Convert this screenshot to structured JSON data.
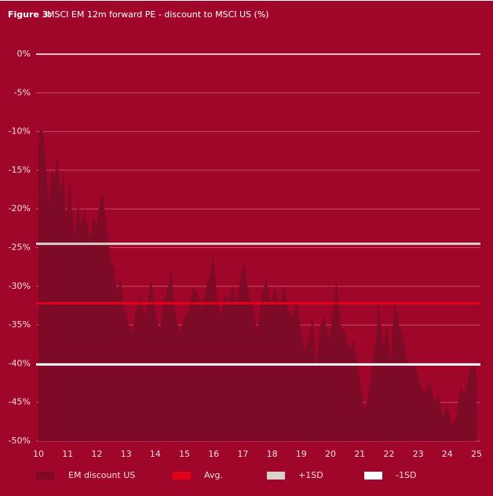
{
  "chart_data": {
    "type": "area",
    "title_label": "Figure 3:",
    "title": "MSCI EM 12m forward PE - discount to MSCI US (%)",
    "series": [
      {
        "name": "EM discount US",
        "color": "#7d0a26",
        "x": [
          10.0,
          10.05,
          10.15,
          10.25,
          10.35,
          10.45,
          10.55,
          10.65,
          10.75,
          10.85,
          10.95,
          11.05,
          11.15,
          11.25,
          11.35,
          11.45,
          11.6,
          11.75,
          11.9,
          12.0,
          12.1,
          12.2,
          12.3,
          12.45,
          12.6,
          12.7,
          12.8,
          12.95,
          13.1,
          13.2,
          13.35,
          13.5,
          13.6,
          13.7,
          13.85,
          14.0,
          14.15,
          14.3,
          14.45,
          14.55,
          14.7,
          14.85,
          15.0,
          15.15,
          15.3,
          15.45,
          15.6,
          15.75,
          15.9,
          16.0,
          16.1,
          16.25,
          16.4,
          16.5,
          16.65,
          16.8,
          16.95,
          17.05,
          17.2,
          17.35,
          17.5,
          17.65,
          17.8,
          17.95,
          18.1,
          18.25,
          18.4,
          18.55,
          18.7,
          18.85,
          19.0,
          19.1,
          19.25,
          19.4,
          19.5,
          19.65,
          19.8,
          19.95,
          20.1,
          20.2,
          20.35,
          20.5,
          20.65,
          20.8,
          20.95,
          21.05,
          21.15,
          21.3,
          21.45,
          21.55,
          21.65,
          21.8,
          21.95,
          22.05,
          22.2,
          22.35,
          22.5,
          22.65,
          22.8,
          22.95,
          23.1,
          23.25,
          23.4,
          23.55,
          23.7,
          23.85,
          24.0,
          24.15,
          24.3,
          24.45,
          24.6,
          24.75,
          24.9,
          25.0
        ],
        "values": [
          -12,
          -9.5,
          -10,
          -14,
          -20,
          -15,
          -16,
          -13,
          -18,
          -15,
          -22,
          -16,
          -20,
          -24,
          -19,
          -22,
          -20,
          -24,
          -21,
          -22,
          -19,
          -18,
          -21,
          -26,
          -28,
          -31,
          -29,
          -33,
          -35,
          -36,
          -33,
          -31,
          -34,
          -33,
          -29,
          -33,
          -36,
          -32,
          -30,
          -28,
          -34,
          -36,
          -34,
          -33,
          -30,
          -31,
          -33,
          -30,
          -28,
          -26,
          -31,
          -34,
          -31,
          -32,
          -30,
          -32,
          -28,
          -27,
          -31,
          -33,
          -36,
          -31,
          -29,
          -32,
          -30,
          -33,
          -30,
          -33,
          -34,
          -32,
          -36,
          -38,
          -37,
          -34,
          -41,
          -35,
          -34,
          -37,
          -33,
          -29,
          -35,
          -36,
          -38,
          -37,
          -41,
          -43,
          -46,
          -44,
          -40,
          -37,
          -32,
          -38,
          -35,
          -40,
          -32,
          -35,
          -37,
          -40,
          -40,
          -41,
          -43,
          -44,
          -42,
          -45,
          -44,
          -47,
          -45,
          -48,
          -47,
          -43,
          -44,
          -41,
          -40,
          -41
        ]
      }
    ],
    "reference_lines": [
      {
        "name": "Avg.",
        "color": "#e3001b",
        "value": -32.2
      },
      {
        "name": "+1SD",
        "color": "#d8d2cc",
        "value": -24.5
      },
      {
        "name": "-1SD",
        "color": "#ffffff",
        "value": -40.1
      }
    ],
    "xlim": [
      10,
      25
    ],
    "xticks": [
      10,
      11,
      12,
      13,
      14,
      15,
      16,
      17,
      18,
      19,
      20,
      21,
      22,
      23,
      24,
      25
    ],
    "ylim": [
      -50,
      0
    ],
    "yticks": [
      {
        "value": 0,
        "label": "0%"
      },
      {
        "value": -5,
        "label": "-5%"
      },
      {
        "value": -10,
        "label": "-10%"
      },
      {
        "value": -15,
        "label": "-15%"
      },
      {
        "value": -20,
        "label": "-20%"
      },
      {
        "value": -25,
        "label": "-25%"
      },
      {
        "value": -30,
        "label": "-30%"
      },
      {
        "value": -35,
        "label": "-35%"
      },
      {
        "value": -40,
        "label": "-40%"
      },
      {
        "value": -45,
        "label": "-45%"
      },
      {
        "value": -50,
        "label": "-50%"
      }
    ],
    "grid": true
  }
}
